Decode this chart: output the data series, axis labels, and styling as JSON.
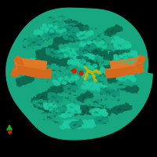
{
  "background_color": "#000000",
  "teal_light": "#1dc9a0",
  "teal_mid": "#17a882",
  "teal_dark": "#0d6b52",
  "teal_shadow": "#0a5240",
  "orange_main": "#d4691e",
  "orange_light": "#e07828",
  "yellow_main": "#c8b400",
  "yellow_light": "#d4c020",
  "red_dot": "#cc2200",
  "axis_blue": "#1155cc",
  "axis_green": "#22aa22",
  "axis_red": "#cc2200",
  "figsize": [
    2.0,
    2.0
  ],
  "dpi": 100
}
